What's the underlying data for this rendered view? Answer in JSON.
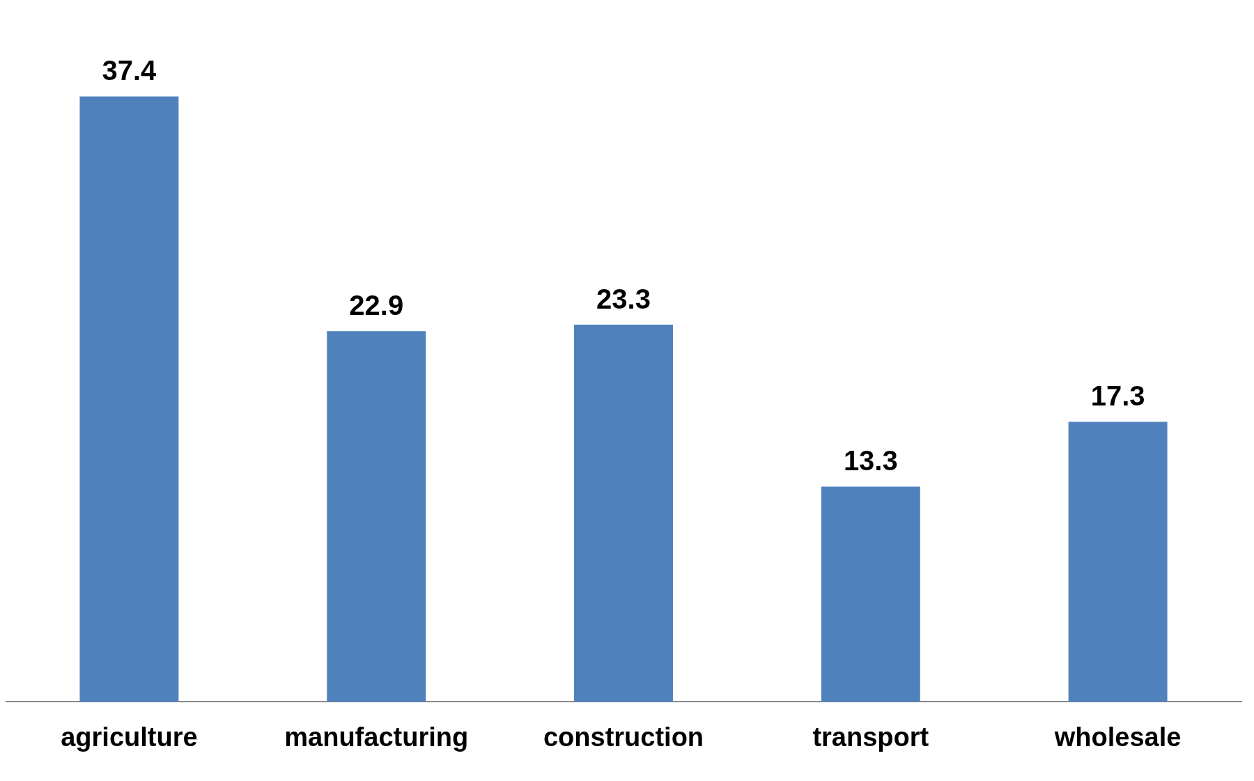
{
  "chart_data": {
    "type": "bar",
    "categories": [
      "agriculture",
      "manufacturing",
      "construction",
      "transport",
      "wholesale"
    ],
    "values": [
      37.4,
      22.9,
      23.3,
      13.3,
      17.3
    ],
    "color": "#4f81bd",
    "data_labels": true,
    "grid": false,
    "legend": false
  }
}
